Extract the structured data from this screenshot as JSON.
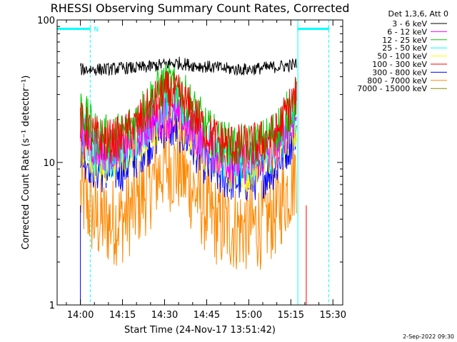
{
  "chart_data": {
    "type": "line",
    "title": "RHESSI Observing Summary Count Rates, Corrected",
    "xlabel": "Start Time (24-Nov-17 13:51:42)",
    "ylabel": "Corrected Count Rate (s⁻¹ detector⁻¹)",
    "x_ticks": [
      "14:00",
      "14:15",
      "14:30",
      "14:45",
      "15:00",
      "15:15",
      "15:30"
    ],
    "x_tick_minutes": [
      0,
      15,
      30,
      45,
      60,
      75,
      90
    ],
    "xlim_minutes": [
      -8.3,
      93.5
    ],
    "y_scale": "log",
    "ylim": [
      1,
      100
    ],
    "y_ticks": [
      "1",
      "10",
      "100"
    ],
    "y_tick_values": [
      1,
      10,
      100
    ],
    "legend_header": "Det 1,3,6, Att 0",
    "legend_position": "top-right, outside plot",
    "x_unit": "minutes after 14:00",
    "series": [
      {
        "name": "3 - 6 keV",
        "color": "#000000",
        "x": [
          0,
          5,
          10,
          15,
          20,
          25,
          30,
          35,
          40,
          45,
          50,
          55,
          60,
          65,
          70,
          75,
          77
        ],
        "values": [
          45,
          45,
          45,
          46,
          46,
          47,
          49,
          50,
          48,
          47,
          46,
          45,
          45,
          46,
          47,
          48,
          49
        ]
      },
      {
        "name": "6 - 12 keV",
        "color": "#ff00ff",
        "x": [
          0,
          5,
          10,
          15,
          20,
          25,
          30,
          35,
          40,
          45,
          50,
          55,
          60,
          65,
          70,
          75,
          77
        ],
        "values": [
          16,
          13,
          12,
          13,
          15,
          19,
          21,
          20,
          16,
          13,
          11,
          10,
          10,
          11,
          13,
          19,
          21
        ]
      },
      {
        "name": "12 - 25 keV",
        "color": "#00cc00",
        "x": [
          0,
          5,
          10,
          15,
          20,
          25,
          30,
          35,
          40,
          45,
          50,
          55,
          60,
          65,
          70,
          75,
          77
        ],
        "values": [
          24,
          16,
          15,
          16,
          20,
          28,
          36,
          33,
          24,
          17,
          14,
          13,
          13,
          14,
          17,
          24,
          28
        ]
      },
      {
        "name": "25 - 50 keV",
        "color": "#00ffff",
        "x": [
          0,
          5,
          10,
          15,
          20,
          25,
          30,
          35,
          40,
          45,
          50,
          55,
          60,
          65,
          70,
          75,
          77
        ],
        "values": [
          17,
          12,
          11,
          12,
          15,
          20,
          25,
          24,
          18,
          13,
          11,
          10,
          10,
          11,
          13,
          19,
          22
        ]
      },
      {
        "name": "50 - 100 keV",
        "color": "#ffff00",
        "x": [
          0,
          5,
          10,
          15,
          20,
          25,
          30,
          35,
          40,
          45,
          50,
          55,
          60,
          65,
          70,
          75,
          77
        ],
        "values": [
          14,
          11,
          10,
          11,
          13,
          17,
          21,
          20,
          15,
          12,
          10,
          9,
          9,
          10,
          12,
          16,
          18
        ]
      },
      {
        "name": "100 - 300 keV",
        "color": "#ff0000",
        "x": [
          0,
          5,
          10,
          15,
          20,
          25,
          30,
          35,
          40,
          45,
          50,
          55,
          60,
          65,
          70,
          75,
          77
        ],
        "values": [
          19,
          15,
          14,
          15,
          18,
          24,
          31,
          29,
          22,
          16,
          14,
          13,
          13,
          14,
          16,
          25,
          30
        ]
      },
      {
        "name": "300 - 800 keV",
        "color": "#0000ff",
        "x": [
          0,
          5,
          10,
          15,
          20,
          25,
          30,
          35,
          40,
          45,
          50,
          55,
          60,
          65,
          70,
          75,
          77
        ],
        "values": [
          12,
          9,
          8.5,
          9,
          11,
          14,
          18,
          17,
          13,
          9.5,
          8,
          7.5,
          7.5,
          8,
          9.5,
          14,
          17
        ]
      },
      {
        "name": "800 - 7000 keV",
        "color": "#ff8800",
        "x": [
          0,
          5,
          10,
          15,
          20,
          25,
          30,
          35,
          40,
          45,
          50,
          55,
          60,
          65,
          70,
          75,
          77
        ],
        "values": [
          6,
          4,
          3.8,
          4,
          5,
          7,
          9.5,
          9,
          6.5,
          4.5,
          3.6,
          3.5,
          3.5,
          3.7,
          4.5,
          7,
          9
        ]
      },
      {
        "name": "7000 - 15000 keV",
        "color": "#888800",
        "x": [],
        "values": []
      }
    ],
    "vertical_markers": [
      {
        "minutes": -8.3,
        "color": "#00ffff",
        "style": "solid"
      },
      {
        "minutes": 3.5,
        "color": "#00ffff",
        "style": "dashed"
      },
      {
        "minutes": 77.5,
        "color": "#00ffff",
        "style": "solid"
      },
      {
        "minutes": 88.5,
        "color": "#00ffff",
        "style": "dashed"
      }
    ],
    "flag_bars": [
      {
        "from": -8.3,
        "to": 3.5,
        "label": "N",
        "color": "#00ffff"
      },
      {
        "from": 77.5,
        "to": 88.5,
        "label": "",
        "color": "#00ffff"
      }
    ],
    "end_spikes": [
      {
        "minutes": 0,
        "color": "#0000ff"
      },
      {
        "minutes": 80.5,
        "color": "#ff0000"
      }
    ]
  },
  "footer": {
    "timestamp": "2-Sep-2022 09:30"
  }
}
